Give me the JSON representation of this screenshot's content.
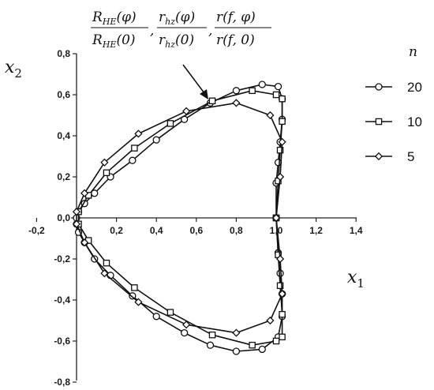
{
  "chart_data": {
    "type": "line",
    "xlabel": "x",
    "xlabel_sub": "1",
    "ylabel": "x",
    "ylabel_sub": "2",
    "xlim": [
      -0.2,
      1.4
    ],
    "ylim": [
      -0.8,
      0.8
    ],
    "x_ticks": [
      -0.2,
      0.2,
      0.4,
      0.6,
      0.8,
      1.0,
      1.2,
      1.4
    ],
    "x_tick_labels": [
      "-0,2",
      "0,2",
      "0,4",
      "0,6",
      "0,8",
      "1,0",
      "1,2",
      "1,4"
    ],
    "y_ticks": [
      0.8,
      0.6,
      0.4,
      0.2,
      0.0,
      -0.2,
      -0.4,
      -0.6,
      -0.8
    ],
    "y_tick_labels": [
      "0,8",
      "0,6",
      "0,4",
      "0,2",
      "0,0",
      "-0,2",
      "-0,4",
      "-0,6",
      "-0,8"
    ],
    "grid": false,
    "legend_title": "n",
    "legend_position": "right",
    "annotation": {
      "lead": [
        "R",
        "HE",
        "(φ)",
        "r",
        "hz",
        "(φ)",
        "r(f, φ)"
      ],
      "den": [
        "R",
        "HE",
        "(0)",
        "r",
        "hz",
        "(0)",
        "r(f, 0)"
      ],
      "comma": ","
    },
    "series": [
      {
        "name": "20",
        "marker": "circle",
        "x": [
          1.0,
          1.0,
          1.01,
          1.02,
          1.03,
          1.03,
          1.01,
          0.93,
          0.8,
          0.67,
          0.54,
          0.4,
          0.28,
          0.17,
          0.09,
          0.04,
          0.01,
          0.0,
          0.0,
          0.01,
          0.04,
          0.09,
          0.17,
          0.28,
          0.4,
          0.54,
          0.67,
          0.8,
          0.93,
          1.01,
          1.03,
          1.03,
          1.02,
          1.01,
          1.0
        ],
        "y": [
          0.0,
          0.17,
          0.27,
          0.37,
          0.48,
          0.58,
          0.64,
          0.65,
          0.62,
          0.56,
          0.48,
          0.38,
          0.28,
          0.2,
          0.12,
          0.07,
          0.03,
          0.0,
          -0.03,
          -0.07,
          -0.12,
          -0.2,
          -0.28,
          -0.38,
          -0.48,
          -0.56,
          -0.62,
          -0.65,
          -0.64,
          -0.58,
          -0.48,
          -0.37,
          -0.27,
          -0.17,
          -0.0
        ]
      },
      {
        "name": "10",
        "marker": "square",
        "x": [
          1.0,
          1.01,
          1.02,
          1.03,
          1.03,
          1.0,
          0.88,
          0.68,
          0.47,
          0.29,
          0.15,
          0.06,
          0.01,
          0.01,
          0.06,
          0.15,
          0.29,
          0.47,
          0.68,
          0.88,
          1.0,
          1.03,
          1.03,
          1.02,
          1.01,
          1.0
        ],
        "y": [
          0.0,
          0.18,
          0.33,
          0.47,
          0.58,
          0.6,
          0.62,
          0.57,
          0.46,
          0.34,
          0.22,
          0.11,
          0.03,
          -0.03,
          -0.11,
          -0.22,
          -0.34,
          -0.46,
          -0.57,
          -0.62,
          -0.6,
          -0.58,
          -0.47,
          -0.33,
          -0.18,
          -0.0
        ]
      },
      {
        "name": "5",
        "marker": "diamond",
        "x": [
          1.0,
          1.02,
          1.03,
          0.97,
          0.8,
          0.55,
          0.31,
          0.14,
          0.04,
          0.0,
          0.0,
          0.04,
          0.14,
          0.31,
          0.55,
          0.8,
          0.97,
          1.03,
          1.02,
          1.0
        ],
        "y": [
          0.0,
          0.2,
          0.37,
          0.5,
          0.56,
          0.52,
          0.41,
          0.27,
          0.12,
          0.03,
          -0.03,
          -0.12,
          -0.27,
          -0.41,
          -0.52,
          -0.56,
          -0.5,
          -0.37,
          -0.2,
          -0.0
        ]
      }
    ]
  }
}
